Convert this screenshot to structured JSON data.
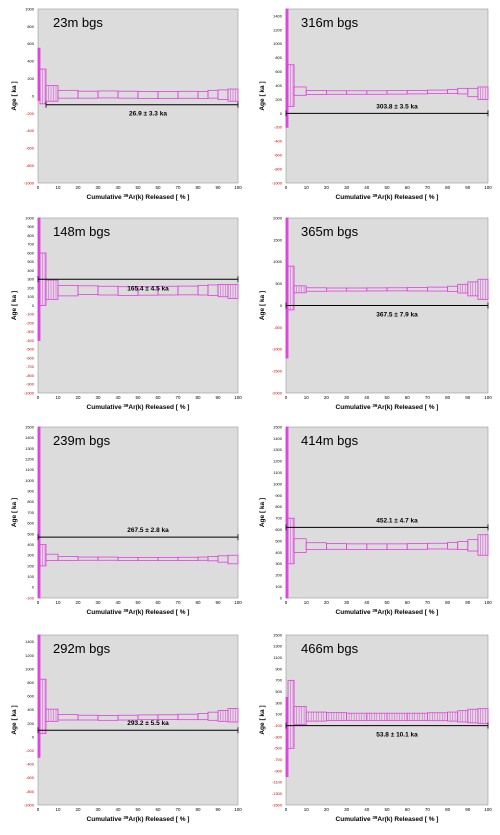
{
  "chart_data": [
    {
      "type": "line",
      "title": "23m bgs",
      "ylim": [
        -1000,
        1000
      ],
      "ytick_step": 200,
      "plateau": "26.9 ± 3.3 ka",
      "plateau_age": -100,
      "plateau_start": 4,
      "spectrum": [
        [
          0,
          250
        ],
        [
          1,
          110
        ],
        [
          4,
          30
        ],
        [
          10,
          20
        ],
        [
          20,
          15
        ],
        [
          30,
          18
        ],
        [
          40,
          15
        ],
        [
          50,
          12
        ],
        [
          60,
          12
        ],
        [
          70,
          14
        ],
        [
          80,
          12
        ],
        [
          85,
          20
        ],
        [
          90,
          15
        ],
        [
          95,
          10
        ],
        [
          100,
          10
        ]
      ],
      "errors": [
        300,
        200,
        90,
        45,
        40,
        40,
        40,
        40,
        40,
        40,
        40,
        45,
        55,
        70,
        80
      ]
    },
    {
      "type": "line",
      "title": "316m bgs",
      "ylim": [
        -1000,
        1500
      ],
      "ytick_step": 200,
      "plateau": "303.8 ± 3.5 ka",
      "plateau_age": 0,
      "plateau_start": 0,
      "spectrum": [
        [
          0,
          1200
        ],
        [
          1,
          400
        ],
        [
          4,
          320
        ],
        [
          10,
          300
        ],
        [
          20,
          300
        ],
        [
          30,
          300
        ],
        [
          40,
          300
        ],
        [
          50,
          302
        ],
        [
          60,
          305
        ],
        [
          70,
          310
        ],
        [
          80,
          315
        ],
        [
          85,
          320
        ],
        [
          90,
          300
        ],
        [
          95,
          290
        ],
        [
          100,
          270
        ]
      ],
      "errors": [
        1400,
        300,
        60,
        30,
        25,
        25,
        25,
        25,
        25,
        25,
        30,
        40,
        60,
        90,
        110
      ]
    },
    {
      "type": "line",
      "title": "148m bgs",
      "ylim": [
        -1000,
        1000
      ],
      "ytick_step": 100,
      "plateau": "165.4 ± 4.5 ka",
      "plateau_age": 300,
      "plateau_start": 0,
      "spectrum": [
        [
          0,
          400
        ],
        [
          1,
          300
        ],
        [
          4,
          180
        ],
        [
          10,
          170
        ],
        [
          20,
          175
        ],
        [
          30,
          170
        ],
        [
          40,
          165
        ],
        [
          50,
          168
        ],
        [
          60,
          170
        ],
        [
          70,
          172
        ],
        [
          80,
          175
        ],
        [
          85,
          175
        ],
        [
          90,
          170
        ],
        [
          95,
          160
        ],
        [
          100,
          155
        ]
      ],
      "errors": [
        800,
        300,
        110,
        60,
        50,
        50,
        50,
        50,
        50,
        50,
        55,
        60,
        70,
        80,
        80
      ]
    },
    {
      "type": "line",
      "title": "365m bgs",
      "ylim": [
        -2000,
        2000
      ],
      "ytick_step": 500,
      "plateau": "367.5 ± 7.9 ka",
      "plateau_age": 0,
      "plateau_start": 0,
      "spectrum": [
        [
          0,
          800
        ],
        [
          1,
          400
        ],
        [
          4,
          370
        ],
        [
          10,
          365
        ],
        [
          20,
          365
        ],
        [
          30,
          365
        ],
        [
          40,
          368
        ],
        [
          50,
          370
        ],
        [
          60,
          372
        ],
        [
          70,
          375
        ],
        [
          80,
          380
        ],
        [
          85,
          385
        ],
        [
          90,
          380
        ],
        [
          95,
          370
        ],
        [
          100,
          360
        ]
      ],
      "errors": [
        2000,
        500,
        80,
        40,
        35,
        35,
        35,
        35,
        40,
        45,
        60,
        100,
        160,
        230,
        280
      ]
    },
    {
      "type": "line",
      "title": "239m bgs",
      "ylim": [
        -100,
        1500
      ],
      "ytick_step": 100,
      "plateau": "267.5 ± 2.8 ka",
      "plateau_age": 470,
      "plateau_start": 0,
      "spectrum": [
        [
          0,
          700
        ],
        [
          1,
          300
        ],
        [
          4,
          280
        ],
        [
          10,
          270
        ],
        [
          20,
          268
        ],
        [
          30,
          268
        ],
        [
          40,
          265
        ],
        [
          50,
          265
        ],
        [
          60,
          265
        ],
        [
          70,
          266
        ],
        [
          80,
          268
        ],
        [
          85,
          268
        ],
        [
          90,
          265
        ],
        [
          95,
          260
        ],
        [
          100,
          250
        ]
      ],
      "errors": [
        900,
        100,
        30,
        18,
        15,
        15,
        15,
        15,
        15,
        15,
        15,
        20,
        30,
        40,
        150
      ]
    },
    {
      "type": "line",
      "title": "414m bgs",
      "ylim": [
        0,
        1500
      ],
      "ytick_step": 100,
      "plateau": "452.1 ± 4.7 ka",
      "plateau_age": 620,
      "plateau_start": 0,
      "spectrum": [
        [
          0,
          800
        ],
        [
          1,
          500
        ],
        [
          4,
          460
        ],
        [
          10,
          455
        ],
        [
          20,
          452
        ],
        [
          30,
          450
        ],
        [
          40,
          450
        ],
        [
          50,
          450
        ],
        [
          60,
          452
        ],
        [
          70,
          455
        ],
        [
          80,
          458
        ],
        [
          85,
          460
        ],
        [
          90,
          462
        ],
        [
          95,
          465
        ],
        [
          100,
          470
        ]
      ],
      "errors": [
        1000,
        200,
        60,
        30,
        25,
        25,
        25,
        25,
        25,
        25,
        30,
        35,
        50,
        90,
        160
      ]
    },
    {
      "type": "line",
      "title": "292m bgs",
      "ylim": [
        -1000,
        1500
      ],
      "ytick_step": 200,
      "plateau": "293.2 ± 5.5 ka",
      "plateau_age": 100,
      "plateau_start": 0,
      "spectrum": [
        [
          0,
          1000
        ],
        [
          1,
          450
        ],
        [
          4,
          320
        ],
        [
          10,
          290
        ],
        [
          20,
          285
        ],
        [
          30,
          280
        ],
        [
          40,
          285
        ],
        [
          50,
          290
        ],
        [
          60,
          292
        ],
        [
          70,
          295
        ],
        [
          80,
          300
        ],
        [
          85,
          305
        ],
        [
          90,
          310
        ],
        [
          95,
          320
        ],
        [
          100,
          330
        ]
      ],
      "errors": [
        1300,
        400,
        90,
        40,
        35,
        35,
        35,
        35,
        35,
        40,
        45,
        60,
        80,
        100,
        120
      ]
    },
    {
      "type": "line",
      "title": "466m bgs",
      "ylim": [
        -1500,
        1500
      ],
      "ytick_step": 200,
      "plateau": "53.8 ± 10.1 ka",
      "plateau_age": -100,
      "plateau_start": 0,
      "spectrum": [
        [
          0,
          -300
        ],
        [
          1,
          100
        ],
        [
          4,
          80
        ],
        [
          10,
          60
        ],
        [
          20,
          60
        ],
        [
          30,
          55
        ],
        [
          40,
          55
        ],
        [
          50,
          55
        ],
        [
          60,
          55
        ],
        [
          70,
          58
        ],
        [
          80,
          60
        ],
        [
          85,
          65
        ],
        [
          90,
          70
        ],
        [
          95,
          70
        ],
        [
          100,
          70
        ]
      ],
      "errors": [
        700,
        600,
        160,
        80,
        70,
        65,
        65,
        65,
        65,
        70,
        80,
        100,
        120,
        130,
        140
      ]
    }
  ],
  "common": {
    "xlabel_prefix": "Cumulative ",
    "xlabel_sup": "39",
    "xlabel_suffix": "Ar(k) Released [ % ]",
    "ylabel": "Age [ ka ]",
    "xticks": [
      0,
      10,
      20,
      30,
      40,
      50,
      60,
      70,
      80,
      90,
      100
    ]
  },
  "colors": {
    "plot_bg": "#dcdcdc",
    "outline": "#000000",
    "spectrum": "#e040e0",
    "tick_pos": "#000000",
    "tick_neg": "#cc0000"
  }
}
